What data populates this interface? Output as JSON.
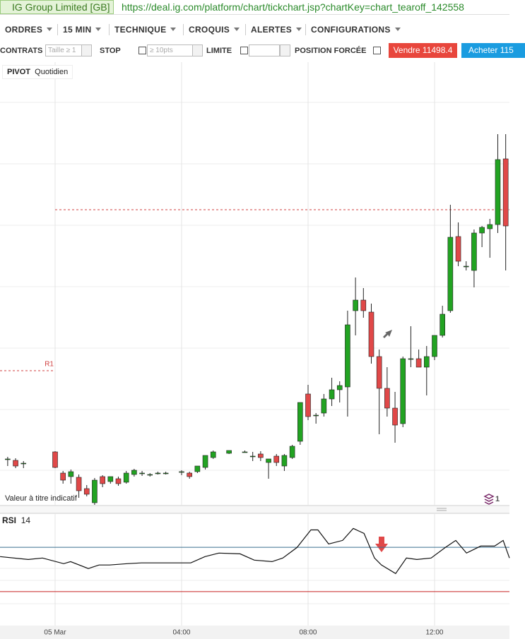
{
  "window": {
    "title": "IG Group Limited [GB]",
    "url": "https://deal.ig.com/platform/chart/tickchart.jsp?chartKey=chart_tearoff_142558"
  },
  "menu": [
    "ORDRES",
    "15 MIN",
    "TECHNIQUE",
    "CROQUIS",
    "ALERTES",
    "CONFIGURATIONS"
  ],
  "toolbar": {
    "contracts": "CONTRATS",
    "size_placeholder": "Taille ≥ 1",
    "stop": "STOP",
    "stop_placeholder": "≥ 10pts",
    "limit": "LIMITE",
    "forced": "POSITION FORCÉE",
    "sell": "Vendre 11498.4",
    "buy": "Acheter 115"
  },
  "chart_data": [
    {
      "type": "candlestick",
      "label": "PIVOT",
      "sublabel": "Quotidien",
      "note": "Valeur à titre indicatif",
      "badge": "1",
      "color_up": "#22a322",
      "color_down": "#e04848",
      "xlim": [
        -1.743,
        14.369
      ],
      "ylim": [
        0,
        625
      ],
      "candles": [
        [
          -1.5,
          65,
          68,
          55,
          65
        ],
        [
          -1.25,
          63,
          66,
          52,
          55
        ],
        [
          -1.0,
          59,
          62,
          52,
          59
        ],
        [
          0,
          75,
          76,
          52,
          53
        ],
        [
          0.25,
          45,
          48,
          30,
          35
        ],
        [
          0.5,
          40,
          50,
          30,
          47
        ],
        [
          0.75,
          39,
          43,
          10,
          20
        ],
        [
          1.0,
          23,
          28,
          12,
          15
        ],
        [
          1.25,
          3,
          38,
          0,
          35
        ],
        [
          1.5,
          40,
          42,
          25,
          30
        ],
        [
          1.75,
          33,
          40,
          30,
          40
        ],
        [
          2,
          37,
          40,
          27,
          30
        ],
        [
          2.25,
          32,
          48,
          30,
          45
        ],
        [
          2.5,
          43,
          51,
          40,
          49
        ],
        [
          2.75,
          45,
          48,
          41,
          45
        ],
        [
          3,
          43,
          45,
          40,
          43
        ],
        [
          3.25,
          45,
          47,
          43,
          45
        ],
        [
          3.5,
          45,
          47,
          43,
          45
        ],
        [
          4,
          47,
          49,
          42,
          47
        ],
        [
          4.25,
          45,
          47,
          37,
          40
        ],
        [
          4.5,
          47,
          55,
          45,
          55
        ],
        [
          4.75,
          53,
          70,
          50,
          70
        ],
        [
          5,
          67,
          77,
          65,
          75
        ],
        [
          5.5,
          73,
          77,
          72,
          77
        ],
        [
          6,
          75,
          77,
          74,
          75
        ],
        [
          6.25,
          69,
          75,
          62,
          69
        ],
        [
          6.5,
          72,
          76,
          62,
          67
        ],
        [
          6.75,
          60,
          65,
          37,
          65
        ],
        [
          7,
          69,
          72,
          55,
          60
        ],
        [
          7.25,
          55,
          72,
          48,
          70
        ],
        [
          7.5,
          67,
          85,
          65,
          83
        ],
        [
          7.75,
          90,
          145,
          85,
          145
        ],
        [
          8,
          157,
          170,
          120,
          125
        ],
        [
          8.25,
          127,
          130,
          115,
          127
        ],
        [
          8.5,
          130,
          157,
          125,
          150
        ],
        [
          8.75,
          150,
          180,
          140,
          163
        ],
        [
          9,
          163,
          175,
          145,
          169
        ],
        [
          9.25,
          167,
          275,
          125,
          255
        ],
        [
          9.5,
          275,
          322,
          240,
          290
        ],
        [
          9.75,
          290,
          307,
          265,
          275
        ],
        [
          10,
          273,
          285,
          200,
          210
        ],
        [
          10.25,
          210,
          220,
          100,
          165
        ],
        [
          10.5,
          165,
          195,
          125,
          137
        ],
        [
          10.75,
          137,
          160,
          88,
          113
        ],
        [
          11,
          115,
          210,
          110,
          207
        ],
        [
          11.25,
          207,
          253,
          195,
          207
        ],
        [
          11.5,
          207,
          220,
          195,
          195
        ],
        [
          11.75,
          195,
          225,
          155,
          210
        ],
        [
          12,
          210,
          240,
          205,
          240
        ],
        [
          12.25,
          240,
          282,
          237,
          270
        ],
        [
          12.5,
          275,
          425,
          272,
          379
        ],
        [
          12.75,
          380,
          400,
          338,
          345
        ],
        [
          13,
          338,
          345,
          332,
          338
        ],
        [
          13.25,
          332,
          390,
          308,
          385
        ],
        [
          13.5,
          385,
          395,
          365,
          393
        ],
        [
          13.75,
          391,
          405,
          350,
          397
        ],
        [
          14,
          397,
          525,
          385,
          489
        ],
        [
          14.25,
          490,
          525,
          332,
          395
        ]
      ],
      "pivot_levels": [
        {
          "label": "R1",
          "value": 190,
          "x": [
            -1.743,
            0
          ]
        },
        {
          "value": 418,
          "x": [
            0,
            14.369
          ]
        }
      ]
    },
    {
      "type": "line",
      "label": "RSI",
      "period": 14,
      "color": "#111111",
      "xlim": [
        -1.743,
        14.369
      ],
      "ylim": [
        0,
        100
      ],
      "xticks": [
        {
          "value": 0,
          "label": "05 Mar"
        },
        {
          "value": 4,
          "label": "04:00"
        },
        {
          "value": 8,
          "label": "08:00"
        },
        {
          "value": 12,
          "label": "12:00"
        }
      ],
      "levels": [
        {
          "value": 70,
          "color": "#3a6f8f"
        },
        {
          "value": 30,
          "color": "#c62020"
        }
      ],
      "x": [
        -1.74,
        -0.85,
        -0.4,
        0.27,
        0.49,
        1.05,
        1.39,
        1.72,
        2.28,
        2.73,
        4.29,
        4.74,
        5.18,
        5.85,
        6.3,
        6.86,
        7.2,
        7.65,
        8.09,
        8.31,
        8.65,
        9.09,
        9.43,
        9.77,
        10.1,
        10.32,
        10.77,
        11.11,
        11.44,
        11.89,
        12.34,
        12.67,
        13.01,
        13.46,
        13.9,
        14.17,
        14.37
      ],
      "values": [
        61.6,
        59.0,
        60.3,
        55.2,
        57.1,
        50.8,
        54.0,
        54.0,
        55.2,
        55.9,
        55.9,
        61.6,
        64.8,
        64.1,
        58.4,
        57.1,
        60.3,
        69.8,
        85.7,
        85.7,
        73.0,
        76.2,
        87.0,
        82.5,
        60.3,
        54.0,
        46.3,
        60.3,
        59.0,
        60.3,
        69.8,
        76.2,
        64.8,
        71.1,
        71.1,
        76.2,
        60.3
      ]
    }
  ]
}
